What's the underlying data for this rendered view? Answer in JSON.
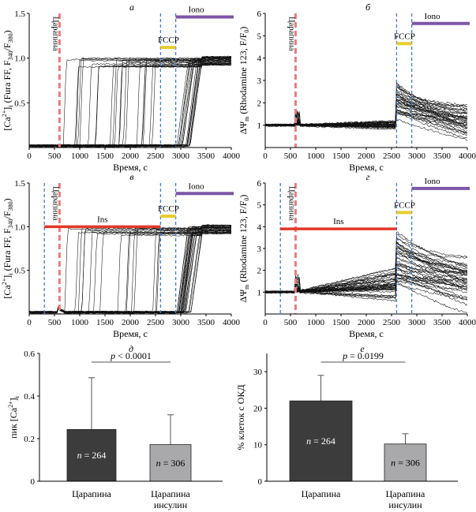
{
  "colors": {
    "scratch_line": "#f07a7a",
    "dashed_line": "#3b7fd6",
    "fccp_bar": "#e8cd2e",
    "iono_bar": "#7d55a6",
    "ins_bar": "#e2382a",
    "bar_dark": "#3c3c3c",
    "bar_light": "#a9a9ab"
  },
  "chart_data": [
    {
      "id": "a",
      "type": "line",
      "panel_label": "а",
      "title": "",
      "ylabel": "[Ca2+]i (Fura FF, F340/F380)",
      "xlabel": "Время, с",
      "xlim": [
        0,
        4000
      ],
      "ylim": [
        0,
        1.5
      ],
      "xticks": [
        "0",
        "500",
        "1000",
        "1500",
        "2000",
        "2500",
        "3000",
        "3500",
        "4000"
      ],
      "yticks": [
        "0.5",
        "1.0",
        "1.5"
      ],
      "ytick_values": [
        0.5,
        1.0,
        1.5
      ],
      "annotations": {
        "scratch": "Царапина",
        "fccp": "FCCP",
        "iono": "Iono"
      },
      "events": {
        "scratch_time": 600,
        "dashed_times": [
          2600,
          2900
        ],
        "fccp_range": [
          2600,
          2900
        ],
        "fccp_y": 1.12,
        "iono_range": [
          2900,
          4000
        ],
        "iono_y": 1.46
      },
      "traces": {
        "count": 40,
        "baseline": 0.01,
        "plateau": 0.98,
        "seed": 11
      }
    },
    {
      "id": "b",
      "type": "line",
      "panel_label": "б",
      "title": "",
      "ylabel": "ΔΨm (Rhodamine 123, F/F0)",
      "xlabel": "Время, с",
      "xlim": [
        0,
        4000
      ],
      "ylim": [
        0,
        6
      ],
      "xticks": [
        "0",
        "500",
        "1000",
        "1500",
        "2000",
        "2500",
        "3000",
        "3500",
        "4000"
      ],
      "yticks": [
        "1",
        "2",
        "3",
        "4",
        "5",
        "6"
      ],
      "ytick_values": [
        1,
        2,
        3,
        4,
        5,
        6
      ],
      "annotations": {
        "scratch": "Царапина",
        "fccp": "FCCP",
        "iono": "Iono"
      },
      "events": {
        "scratch_time": 600,
        "dashed_times": [
          2600,
          2900
        ],
        "fccp_range": [
          2600,
          2900
        ],
        "fccp_y": 4.65,
        "iono_range": [
          2900,
          4000
        ],
        "iono_y": 5.55
      },
      "traces": {
        "count": 36,
        "baseline": 1.0,
        "seed": 23
      }
    },
    {
      "id": "v",
      "type": "line",
      "panel_label": "в",
      "title": "",
      "ylabel": "[Ca2+]i (Fura FF, F340/F380)",
      "xlabel": "Время, с",
      "xlim": [
        0,
        4000
      ],
      "ylim": [
        0,
        1.5
      ],
      "xticks": [
        "0",
        "500",
        "1000",
        "1500",
        "2000",
        "2500",
        "3000",
        "3500",
        "4000"
      ],
      "yticks": [
        "0.5",
        "1.0",
        "1.5"
      ],
      "ytick_values": [
        0.5,
        1.0,
        1.5
      ],
      "annotations": {
        "scratch": "Царапина",
        "fccp": "FCCP",
        "iono": "Iono",
        "ins": "Ins"
      },
      "events": {
        "scratch_time": 600,
        "dashed_times": [
          300,
          2600,
          2900
        ],
        "fccp_range": [
          2600,
          2900
        ],
        "fccp_y": 1.12,
        "iono_range": [
          2900,
          4000
        ],
        "iono_y": 1.38,
        "ins_range": [
          300,
          2600
        ],
        "ins_y": 1.0
      },
      "traces": {
        "count": 40,
        "baseline": 0.01,
        "plateau": 0.98,
        "seed": 37
      }
    },
    {
      "id": "g",
      "type": "line",
      "panel_label": "г",
      "title": "",
      "ylabel": "ΔΨm (Rhodamine 123, F/F0)",
      "xlabel": "Время, с",
      "xlim": [
        0,
        4000
      ],
      "ylim": [
        0,
        6
      ],
      "xticks": [
        "0",
        "500",
        "1000",
        "1500",
        "2000",
        "2500",
        "3000",
        "3500",
        "4000"
      ],
      "yticks": [
        "1",
        "2",
        "3",
        "4",
        "5",
        "6"
      ],
      "ytick_values": [
        1,
        2,
        3,
        4,
        5,
        6
      ],
      "annotations": {
        "scratch": "Царапина",
        "fccp": "FCCP",
        "iono": "Iono",
        "ins": "Ins"
      },
      "events": {
        "scratch_time": 600,
        "dashed_times": [
          300,
          2600,
          2900
        ],
        "fccp_range": [
          2600,
          2900
        ],
        "fccp_y": 4.65,
        "iono_range": [
          2900,
          4000
        ],
        "iono_y": 5.75,
        "ins_range": [
          300,
          2600
        ],
        "ins_y": 3.9
      },
      "traces": {
        "count": 40,
        "baseline": 1.0,
        "seed": 51
      }
    },
    {
      "id": "d",
      "type": "bar",
      "panel_label": "д",
      "ylabel": "пик [Ca2+]i",
      "categories": [
        "Царапина",
        "Царапина инсулин"
      ],
      "category_lines": [
        [
          "Царапина"
        ],
        [
          "Царапина",
          "инсулин"
        ]
      ],
      "values": [
        0.243,
        0.172
      ],
      "errors": [
        0.243,
        0.14
      ],
      "n_labels": [
        "264",
        "306"
      ],
      "ylim": [
        0,
        0.6
      ],
      "yticks": [
        "0",
        "0.2",
        "0.4",
        "0.6"
      ],
      "ytick_values": [
        0,
        0.2,
        0.4,
        0.6
      ],
      "significance": {
        "p_label": "p",
        "p_value": "< 0.0001"
      }
    },
    {
      "id": "e",
      "type": "bar",
      "panel_label": "е",
      "ylabel": "% клеток с ОКД",
      "categories": [
        "Царапина",
        "Царапина инсулин"
      ],
      "category_lines": [
        [
          "Царапина"
        ],
        [
          "Царапина",
          "инсулин"
        ]
      ],
      "values": [
        22.0,
        10.2
      ],
      "errors": [
        7.0,
        2.8
      ],
      "n_labels": [
        "264",
        "306"
      ],
      "ylim": [
        0,
        35
      ],
      "yticks": [
        "0",
        "10",
        "20",
        "30"
      ],
      "ytick_values": [
        0,
        10,
        20,
        30
      ],
      "significance": {
        "p_label": "p",
        "p_value": "= 0.0199"
      }
    }
  ]
}
